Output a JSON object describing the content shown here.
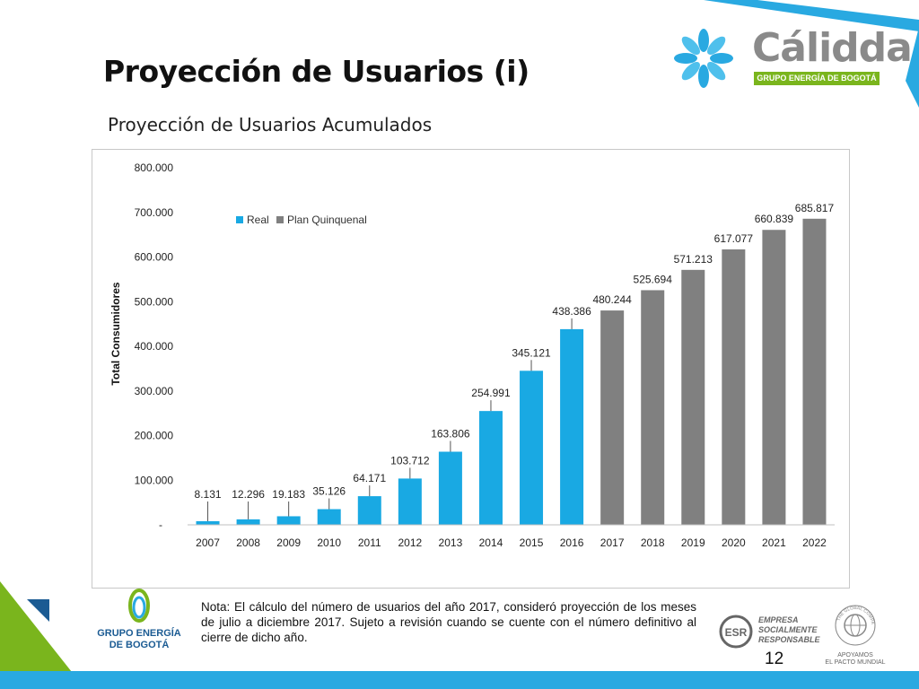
{
  "header": {
    "title": "Proyección de Usuarios (i)",
    "subtitle": "Proyección de Usuarios Acumulados"
  },
  "brand": {
    "name": "Cálidda",
    "tagline": "GRUPO ENERGÍA DE BOGOTÁ"
  },
  "footer": {
    "note": "Nota: El cálculo del número de usuarios del año 2017, consideró proyección de los meses de julio a diciembre 2017. Sujeto a revisión cuando se cuente con el número definitivo al cierre de dicho año.",
    "page_number": "12",
    "geb_logo_line1": "GRUPO ENERGÍA",
    "geb_logo_line2": "DE BOGOTÁ",
    "esr_line1": "EMPRESA",
    "esr_line2": "SOCIALMENTE",
    "esr_line3": "RESPONSABLE",
    "esr_badge": "ESR",
    "gc_line1": "APOYAMOS",
    "gc_line2": "EL PACTO MUNDIAL",
    "gc_ring": "THE GLOBAL COMPACT"
  },
  "colors": {
    "real": "#19a9e3",
    "plan": "#808080",
    "accent_green": "#7ab51d",
    "accent_blue": "#29a9e1"
  },
  "chart_data": {
    "type": "bar",
    "ylabel": "Total Consumidores",
    "xlabel": "",
    "ylim": [
      0,
      800000
    ],
    "yticks": [
      "-",
      "100.000",
      "200.000",
      "300.000",
      "400.000",
      "500.000",
      "600.000",
      "700.000",
      "800.000"
    ],
    "legend_position": "top-left",
    "series": [
      {
        "name": "Real"
      },
      {
        "name": "Plan Quinquenal"
      }
    ],
    "categories": [
      "2007",
      "2008",
      "2009",
      "2010",
      "2011",
      "2012",
      "2013",
      "2014",
      "2015",
      "2016",
      "2017",
      "2018",
      "2019",
      "2020",
      "2021",
      "2022"
    ],
    "values": [
      8131,
      12296,
      19183,
      35126,
      64171,
      103712,
      163806,
      254991,
      345121,
      438386,
      480244,
      525694,
      571213,
      617077,
      660839,
      685817
    ],
    "labels": [
      "8.131",
      "12.296",
      "19.183",
      "35.126",
      "64.171",
      "103.712",
      "163.806",
      "254.991",
      "345.121",
      "438.386",
      "480.244",
      "525.694",
      "571.213",
      "617.077",
      "660.839",
      "685.817"
    ],
    "series_index": [
      0,
      0,
      0,
      0,
      0,
      0,
      0,
      0,
      0,
      0,
      1,
      1,
      1,
      1,
      1,
      1
    ]
  }
}
